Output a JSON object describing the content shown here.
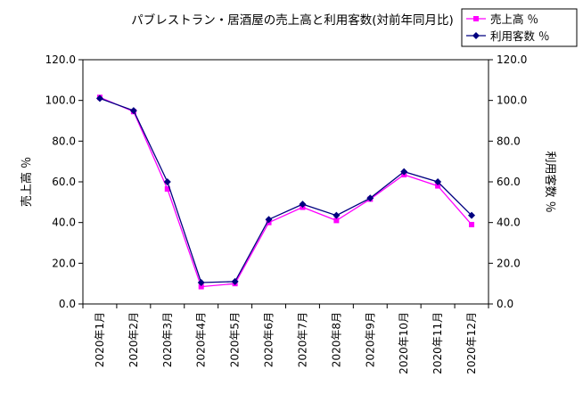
{
  "chart_data": {
    "type": "line",
    "title": "パブレストラン・居酒屋の売上高と利用客数(対前年同月比)",
    "ylabel_left": "売上高 ％",
    "ylabel_right": "利用客数 ％",
    "ylim": [
      0,
      120
    ],
    "y_ticks": [
      "0.0",
      "20.0",
      "40.0",
      "60.0",
      "80.0",
      "100.0",
      "120.0"
    ],
    "grid": false,
    "legend_position": "top-right",
    "categories": [
      "2020年1月",
      "2020年2月",
      "2020年3月",
      "2020年4月",
      "2020年5月",
      "2020年6月",
      "2020年7月",
      "2020年8月",
      "2020年9月",
      "2020年10月",
      "2020年11月",
      "2020年12月"
    ],
    "series": [
      {
        "name": "売上高 ％",
        "color": "#ff00ff",
        "marker": "square",
        "values": [
          101.5,
          94.5,
          56.5,
          8.5,
          10.0,
          40.0,
          47.5,
          41.0,
          51.5,
          63.5,
          58.0,
          39.0
        ]
      },
      {
        "name": "利用客数 ％",
        "color": "#000080",
        "marker": "diamond",
        "values": [
          101.0,
          95.0,
          60.0,
          10.5,
          11.0,
          41.5,
          49.0,
          43.5,
          52.0,
          65.0,
          60.0,
          43.5
        ]
      }
    ]
  }
}
